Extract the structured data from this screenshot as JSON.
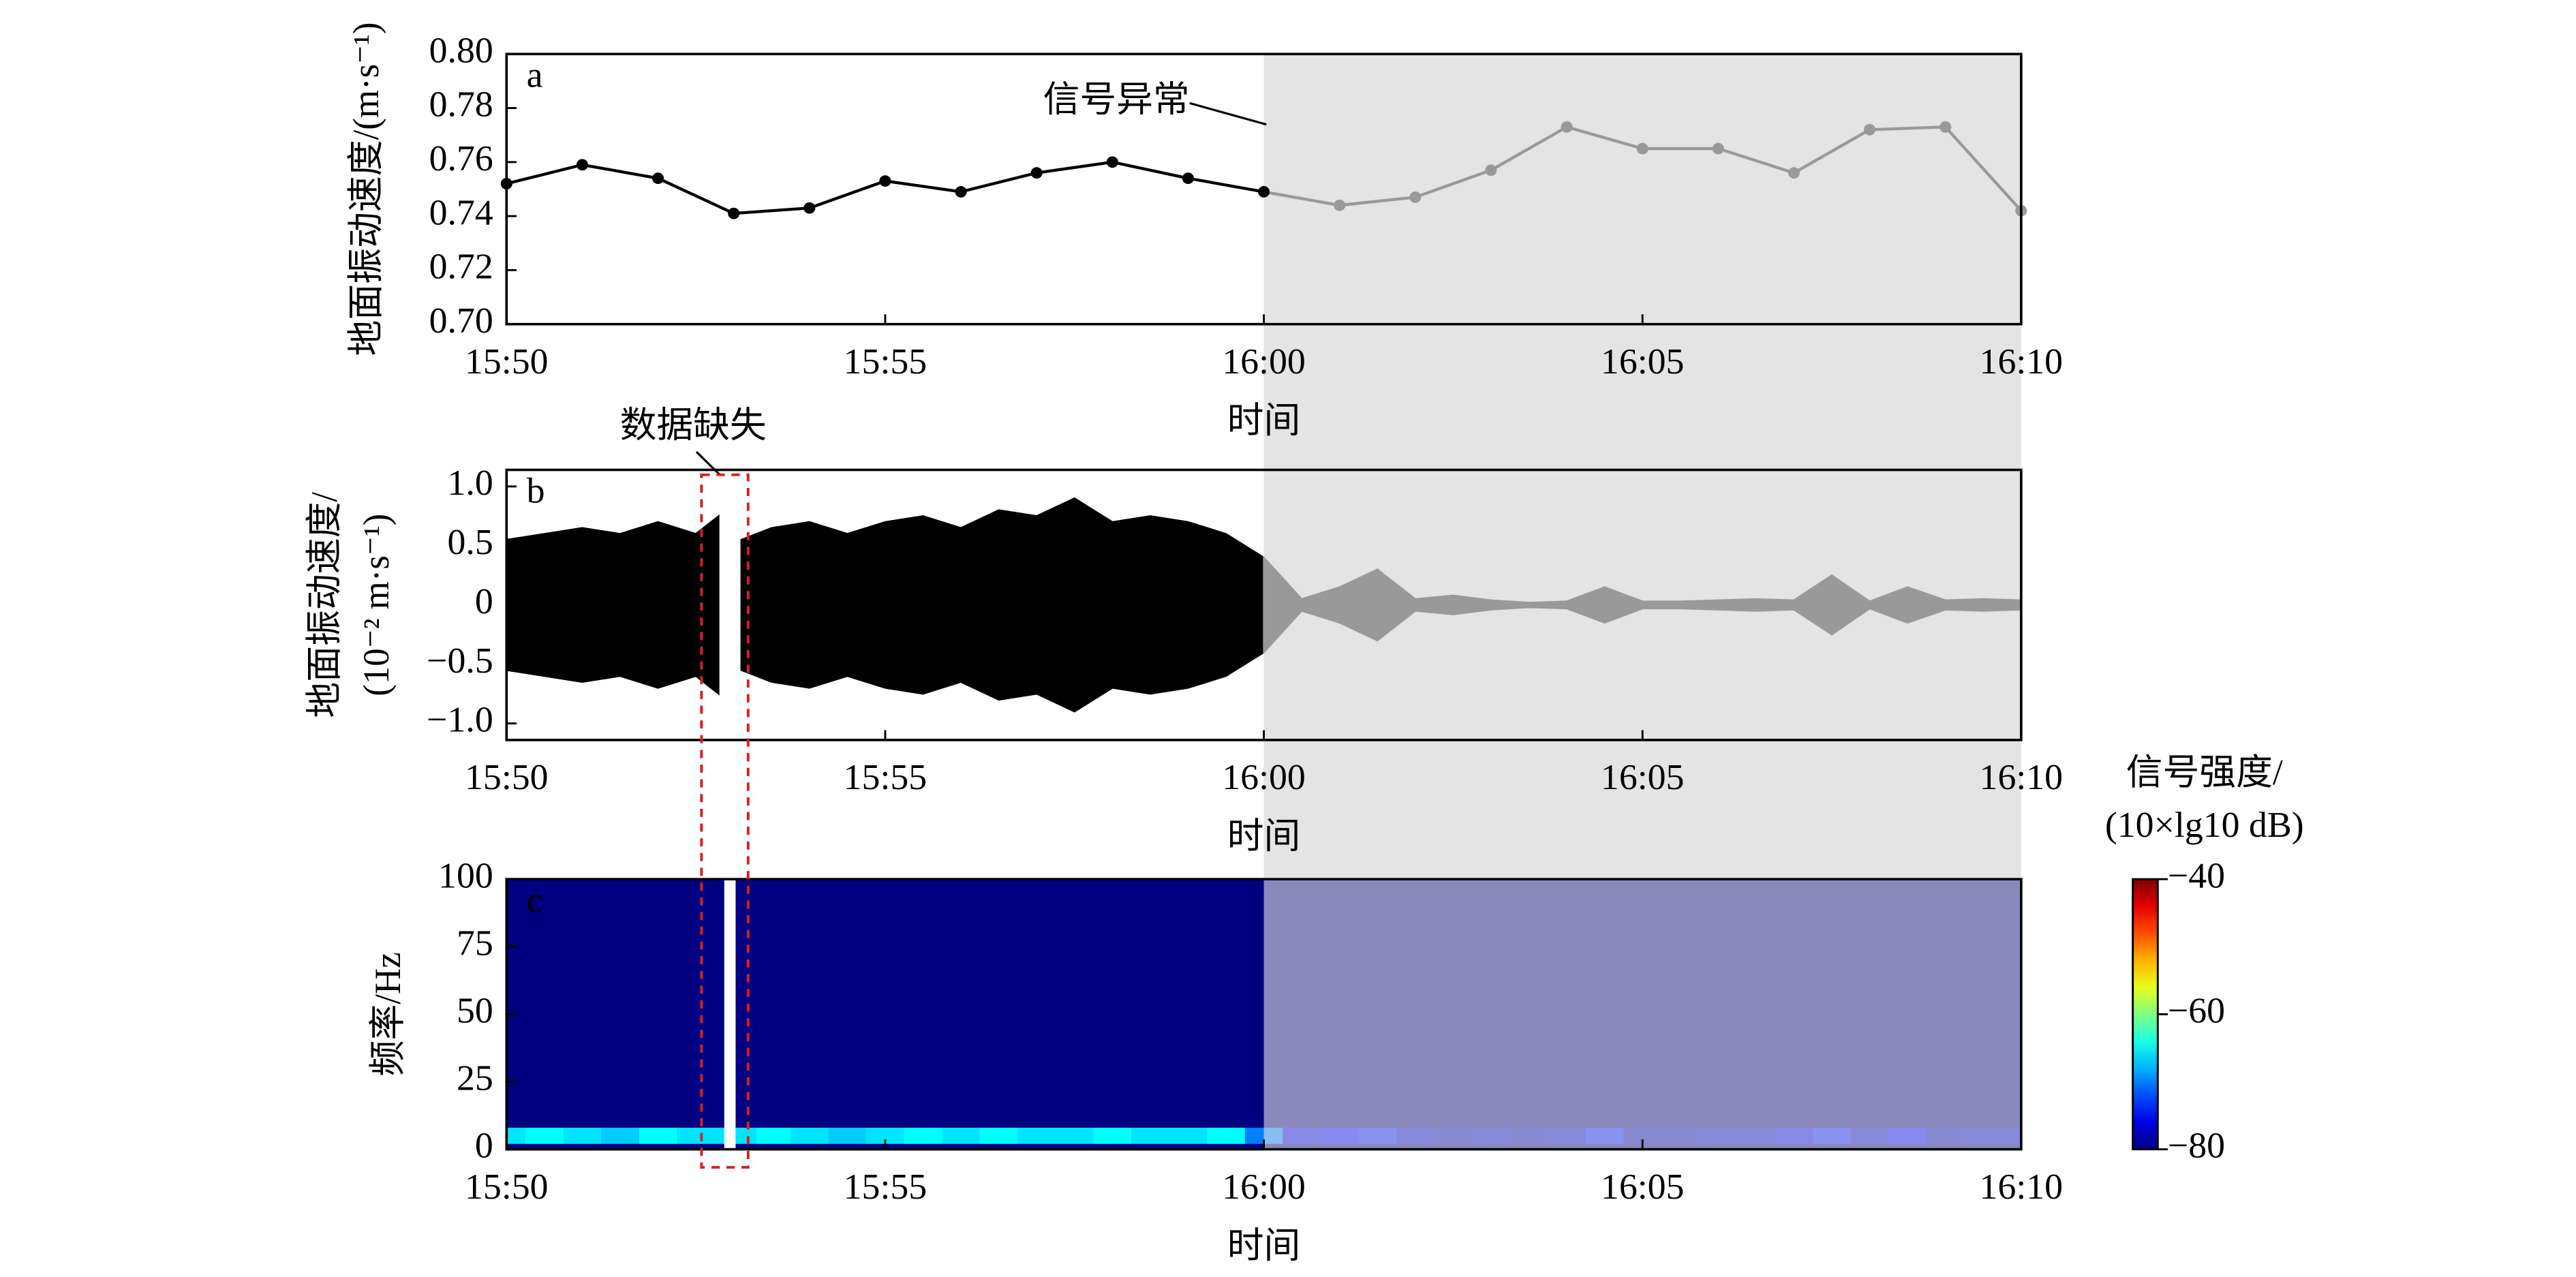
{
  "chart_data": [
    {
      "type": "line",
      "panel_label": "a",
      "x": [
        0,
        1,
        2,
        3,
        4,
        5,
        6,
        7,
        8,
        9,
        10,
        11,
        12,
        13,
        14,
        15,
        16,
        17,
        18,
        19,
        20
      ],
      "values": [
        0.752,
        0.759,
        0.754,
        0.741,
        0.743,
        0.753,
        0.749,
        0.756,
        0.76,
        0.754,
        0.749,
        0.744,
        0.747,
        0.757,
        0.773,
        0.765,
        0.765,
        0.756,
        0.772,
        0.773,
        0.742
      ],
      "color": "#000000",
      "shaded_line_color": "#999999",
      "shade": {
        "xlim": [
          10,
          20
        ],
        "color": "#e4e4e4"
      },
      "xlim": [
        0,
        20
      ],
      "xticks": [
        {
          "value": 0,
          "label": "15:50"
        },
        {
          "value": 5,
          "label": "15:55"
        },
        {
          "value": 10,
          "label": "16:00"
        },
        {
          "value": 15,
          "label": "16:05"
        },
        {
          "value": 20,
          "label": "16:10"
        }
      ],
      "ylim": [
        0.7,
        0.8
      ],
      "yticks": [
        {
          "value": 0.7,
          "label": "0.70"
        },
        0.72,
        0.74,
        0.76,
        0.78,
        {
          "value": 0.8,
          "label": "0.80"
        }
      ],
      "x_label": "时间",
      "y_label": [
        "地面振动速度/(m·s⁻¹)"
      ],
      "annotation": "信号异常"
    },
    {
      "type": "envelope",
      "panel_label": "b",
      "x": [
        0,
        0.5,
        1,
        1.5,
        2,
        2.5,
        2.8,
        2.95,
        3.1,
        3.5,
        4,
        4.5,
        5,
        5.5,
        6,
        6.5,
        7,
        7.5,
        8,
        8.5,
        9,
        9.5,
        10,
        10.5,
        11,
        11.5,
        12,
        12.5,
        13,
        13.5,
        14,
        14.5,
        15,
        15.5,
        16,
        16.5,
        17,
        17.5,
        18,
        18.5,
        19,
        19.5,
        20
      ],
      "values": [
        0.55,
        0.6,
        0.65,
        0.6,
        0.7,
        0.6,
        0.75,
        null,
        0.55,
        0.65,
        0.7,
        0.6,
        0.7,
        0.75,
        0.65,
        0.8,
        0.75,
        0.9,
        0.7,
        0.75,
        0.7,
        0.6,
        0.4,
        0.05,
        0.15,
        0.3,
        0.05,
        0.08,
        0.04,
        0.02,
        0.03,
        0.15,
        0.03,
        0.03,
        0.04,
        0.05,
        0.04,
        0.25,
        0.03,
        0.15,
        0.04,
        0.05,
        0.04
      ],
      "color": "#000000",
      "shaded_line_color": "#999999",
      "shade": {
        "xlim": [
          10,
          20
        ],
        "color": "#e4e4e4"
      },
      "xlim": [
        0,
        20
      ],
      "xticks": [
        {
          "value": 0,
          "label": "15:50"
        },
        {
          "value": 5,
          "label": "15:55"
        },
        {
          "value": 10,
          "label": "16:00"
        },
        {
          "value": 15,
          "label": "16:05"
        },
        {
          "value": 20,
          "label": "16:10"
        }
      ],
      "ylim": [
        -1.14,
        1.14
      ],
      "yticks": [
        {
          "value": -1,
          "label": "−1.0"
        },
        {
          "value": -0.5,
          "label": "−0.5"
        },
        0,
        0.5,
        {
          "value": 1,
          "label": "1.0"
        }
      ],
      "x_label": "时间",
      "y_label": [
        "地面振动速度/",
        "(10⁻² m·s⁻¹)"
      ],
      "annotation": "数据缺失"
    },
    {
      "type": "heatmap",
      "panel_label": "c",
      "x": [
        0,
        0.5,
        1,
        1.5,
        2,
        2.5,
        2.8,
        2.95,
        3.1,
        3.5,
        4,
        4.5,
        5,
        5.5,
        6,
        6.5,
        7,
        7.5,
        8,
        8.5,
        9,
        9.5,
        10,
        10.5,
        11,
        11.5,
        12,
        12.5,
        13,
        13.5,
        14,
        14.5,
        15,
        15.5,
        16,
        16.5,
        17,
        17.5,
        18,
        18.5,
        19,
        19.5,
        20
      ],
      "values": [
        -66,
        -65,
        -66,
        -67,
        -65,
        -66,
        -66,
        null,
        -66,
        -65,
        -66,
        -67,
        -66,
        -65,
        -66,
        -65,
        -66,
        -66,
        -65,
        -66,
        -66,
        -65,
        -70,
        -76,
        -75,
        -74,
        -77,
        -78,
        -77,
        -78,
        -77,
        -74,
        -78,
        -78,
        -77,
        -77,
        -76,
        -74,
        -77,
        -75,
        -78,
        -77,
        -77
      ],
      "freq_range": [
        2,
        8
      ],
      "shade": {
        "xlim": [
          10,
          20
        ],
        "color": "#e4e4e4",
        "opacity": 0.6
      },
      "xlim": [
        0,
        20
      ],
      "xticks": [
        {
          "value": 0,
          "label": "15:50"
        },
        {
          "value": 5,
          "label": "15:55"
        },
        {
          "value": 10,
          "label": "16:00"
        },
        {
          "value": 15,
          "label": "16:05"
        },
        {
          "value": 20,
          "label": "16:10"
        }
      ],
      "ylim": [
        0,
        100
      ],
      "yticks": [
        0,
        25,
        50,
        75,
        100
      ],
      "clim": [
        -80,
        -40
      ],
      "cticks": [
        {
          "value": -80,
          "label": "−80"
        },
        {
          "value": -60,
          "label": "−60"
        },
        {
          "value": -40,
          "label": "−40"
        }
      ],
      "colorbar_label": [
        "信号强度/",
        "(10×lg10 dB)"
      ],
      "x_label": "时间",
      "y_label": [
        "频率/Hz"
      ]
    }
  ]
}
